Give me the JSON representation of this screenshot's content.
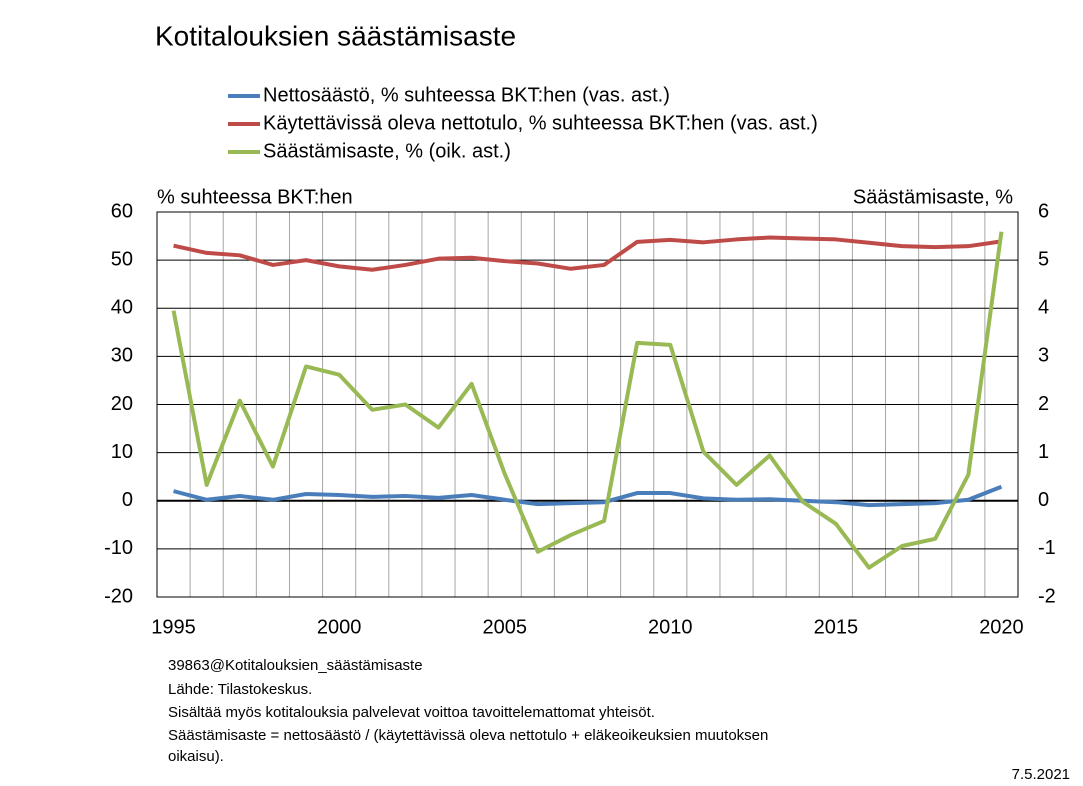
{
  "chart_data": {
    "type": "line",
    "title": "Kotitalouksien säästämisaste",
    "y_label": "% suhteessa BKT:hen",
    "y2_label": "Säästämisaste, %",
    "categories": [
      "1995",
      null,
      null,
      null,
      null,
      "2000",
      null,
      null,
      null,
      null,
      "2005",
      null,
      null,
      null,
      null,
      "2010",
      null,
      null,
      null,
      null,
      "2015",
      null,
      null,
      null,
      null,
      "2020"
    ],
    "series": [
      {
        "name": "Nettosäästö, % suhteessa BKT:hen (vas. ast.)",
        "color": "#4a7ebb",
        "values": [
          2.0,
          0.2,
          1.0,
          0.2,
          1.4,
          1.2,
          0.8,
          1.0,
          0.6,
          1.2,
          0.2,
          -0.7,
          -0.5,
          -0.3,
          1.6,
          1.6,
          0.5,
          0.2,
          0.3,
          0.0,
          -0.3,
          -0.9,
          -0.7,
          -0.5,
          0.2,
          2.9
        ]
      },
      {
        "name": "Käytettävissä oleva nettotulo, % suhteessa BKT:hen (vas. ast.)",
        "color": "#be4b48",
        "values": [
          53.0,
          51.5,
          51.0,
          49.0,
          50.0,
          48.7,
          48.0,
          49.0,
          50.3,
          50.5,
          49.8,
          49.3,
          48.2,
          49.0,
          53.8,
          54.2,
          53.7,
          54.3,
          54.7,
          54.5,
          54.3,
          53.6,
          52.9,
          52.7,
          52.9,
          53.9
        ]
      },
      {
        "name": "Säästämisaste, % (oik. ast.)",
        "color": "#98b954",
        "axis": "y2",
        "values": [
          3.95,
          0.33,
          2.08,
          0.71,
          2.79,
          2.62,
          1.89,
          2.0,
          1.52,
          2.43,
          0.56,
          -1.06,
          -0.71,
          -0.42,
          3.28,
          3.24,
          1.02,
          0.33,
          0.94,
          -0.02,
          -0.48,
          -1.39,
          -0.94,
          -0.79,
          0.54,
          5.59
        ]
      }
    ],
    "ylim": [
      -20,
      60
    ],
    "yticks": [
      -20,
      -10,
      0,
      10,
      20,
      30,
      40,
      50,
      60
    ],
    "y2lim": [
      -2,
      6
    ],
    "y2ticks": [
      -2,
      -1,
      0,
      1,
      2,
      3,
      4,
      5,
      6
    ],
    "grid": true,
    "notes": [
      "39863@Kotitalouksien_säästämisaste",
      "Lähde: Tilastokeskus.",
      "Sisältää myös kotitalouksia palvelevat voittoa tavoittelemattomat yhteisöt.",
      "Säästämisaste = nettosäästö / (käytettävissä  oleva nettotulo + eläkeoikeuksien muutoksen",
      "oikaisu)."
    ],
    "date": "7.5.2021"
  }
}
